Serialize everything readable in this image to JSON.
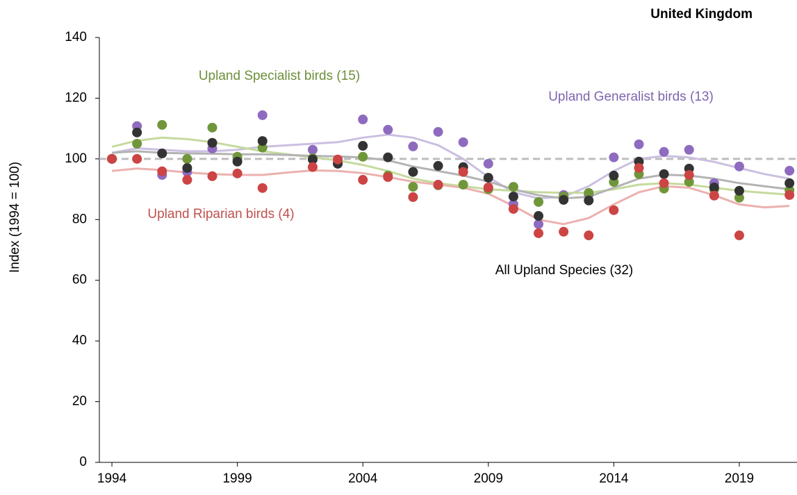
{
  "chart_data": {
    "type": "line",
    "title": "United Kingdom",
    "y_label": "Index (1994 = 100)",
    "x": [
      1994,
      1995,
      1996,
      1997,
      1998,
      1999,
      2000,
      2001,
      2002,
      2003,
      2004,
      2005,
      2006,
      2007,
      2008,
      2009,
      2010,
      2011,
      2012,
      2013,
      2014,
      2015,
      2016,
      2017,
      2018,
      2019,
      2020,
      2021
    ],
    "xlim": [
      1993.5,
      2021.3
    ],
    "xticks": [
      1994,
      1999,
      2004,
      2009,
      2014,
      2019
    ],
    "ylim": [
      0,
      140
    ],
    "yticks": [
      0,
      20,
      40,
      60,
      80,
      100,
      120,
      140
    ],
    "reference_line": 100,
    "series": [
      {
        "name": "Upland Generalist birds (13)",
        "color": "#8e6bbf",
        "trend_color": "#cbbfe1",
        "label_color": "#7e65ae",
        "values": [
          100,
          110.8,
          94.7,
          95.7,
          103.4,
          100,
          114.4,
          null,
          103,
          98.4,
          113,
          109.6,
          104.1,
          108.9,
          105.5,
          98.4,
          85.1,
          78.5,
          88.1,
          88.3,
          100.5,
          104.8,
          102.3,
          103,
          92,
          97.5,
          null,
          96.1
        ],
        "trend": [
          102,
          103.5,
          103,
          102.5,
          102.5,
          103,
          104,
          104.5,
          105,
          105.5,
          107,
          108,
          107,
          104.5,
          100,
          94,
          89,
          87,
          87.5,
          91,
          96,
          100,
          101,
          100.5,
          99,
          97,
          95,
          93.5
        ]
      },
      {
        "name": "Upland Specialist birds (15)",
        "color": "#70963a",
        "trend_color": "#c5da9d",
        "label_color": "#6d8f3a",
        "values": [
          100,
          105,
          111.2,
          100,
          110.3,
          100.7,
          103.7,
          null,
          100.2,
          98.6,
          100.7,
          94.5,
          90.8,
          91.3,
          91.5,
          90,
          90.8,
          85.8,
          87.6,
          88.8,
          92.4,
          95,
          90.2,
          92.4,
          90,
          87.2,
          null,
          89.7
        ],
        "trend": [
          104,
          106,
          107,
          106.5,
          105.5,
          104,
          102.5,
          101.5,
          100.5,
          99.5,
          98,
          96,
          93.5,
          92,
          91,
          90,
          89.5,
          89,
          88.8,
          88.8,
          90,
          91.5,
          92,
          91.5,
          90.5,
          89.5,
          88.8,
          88.2
        ]
      },
      {
        "name": "All Upland Species (32)",
        "color": "#333333",
        "trend_color": "#b3b3b3",
        "label_color": "#000000",
        "values": [
          100,
          108.7,
          101.8,
          97,
          105.3,
          99.1,
          105.9,
          null,
          99.8,
          98.4,
          104.3,
          100.5,
          95.7,
          97.7,
          97.3,
          93.8,
          87.6,
          81.2,
          86.5,
          86.3,
          94.5,
          99.1,
          95,
          96.8,
          90.6,
          89.5,
          null,
          92
        ],
        "trend": [
          102,
          102.5,
          102,
          101.8,
          101.7,
          101.5,
          101.5,
          101.3,
          101,
          100.8,
          100.5,
          99.5,
          97.5,
          96,
          94.5,
          92.5,
          90,
          88,
          87,
          87.5,
          90.5,
          93.5,
          94.8,
          94.5,
          93.5,
          92,
          91,
          90
        ]
      },
      {
        "name": "Upland Riparian birds (4)",
        "color": "#cc4444",
        "trend_color": "#ebb1af",
        "label_color": "#c0504d",
        "values": [
          100,
          100,
          95.9,
          93.1,
          94.3,
          95.2,
          90.4,
          null,
          97.3,
          99.8,
          93.1,
          94,
          87.4,
          91.5,
          95.7,
          90.6,
          83.5,
          75.5,
          76,
          74.8,
          83.1,
          97,
          92,
          94.7,
          87.9,
          74.8,
          null,
          88.1
        ],
        "trend": [
          96,
          96.8,
          96.3,
          95.5,
          95,
          94.7,
          94.7,
          95.5,
          96.2,
          96,
          95.3,
          94,
          92.5,
          91.5,
          90.5,
          88.5,
          84.5,
          80,
          78.5,
          80.5,
          85,
          89,
          91,
          90.5,
          88,
          85,
          84,
          84.5
        ]
      }
    ]
  }
}
